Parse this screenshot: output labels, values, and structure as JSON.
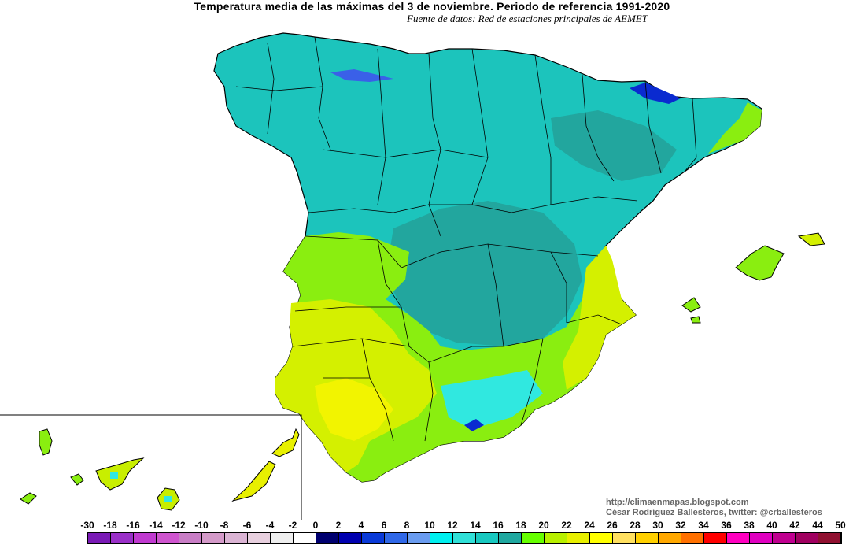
{
  "title": "Temperatura media de las máximas del 3 de noviembre. Periodo de referencia 1991-2020",
  "subtitle": "Fuente de datos: Red de estaciones principales de AEMET",
  "credits": {
    "blog": "http://climaenmapas.blogspot.com",
    "author": "César Rodríguez Ballesteros, twitter: @crballesteros"
  },
  "legend": {
    "labels": [
      "-30",
      "-18",
      "-16",
      "-14",
      "-12",
      "-10",
      "-8",
      "-6",
      "-4",
      "-2",
      "0",
      "2",
      "4",
      "6",
      "8",
      "10",
      "12",
      "14",
      "16",
      "18",
      "20",
      "22",
      "24",
      "26",
      "28",
      "30",
      "32",
      "34",
      "36",
      "38",
      "40",
      "42",
      "44",
      "50"
    ],
    "colors": [
      "#7a1ab6",
      "#9a30c8",
      "#c03ad0",
      "#cf55cf",
      "#c97ec6",
      "#d49ac9",
      "#dbb4d4",
      "#e8d0df",
      "#eeeeee",
      "#ffffff",
      "#000070",
      "#0000b0",
      "#0a3ad8",
      "#3068e8",
      "#6a9cf0",
      "#00f0f0",
      "#30e0d8",
      "#18c8c0",
      "#20a8a0",
      "#66ff00",
      "#b8f000",
      "#e8f000",
      "#ffff00",
      "#ffe060",
      "#ffd000",
      "#ffa800",
      "#ff7000",
      "#ff0000",
      "#ff00c0",
      "#e000c0",
      "#c00090",
      "#a00060",
      "#901030"
    ]
  }
}
